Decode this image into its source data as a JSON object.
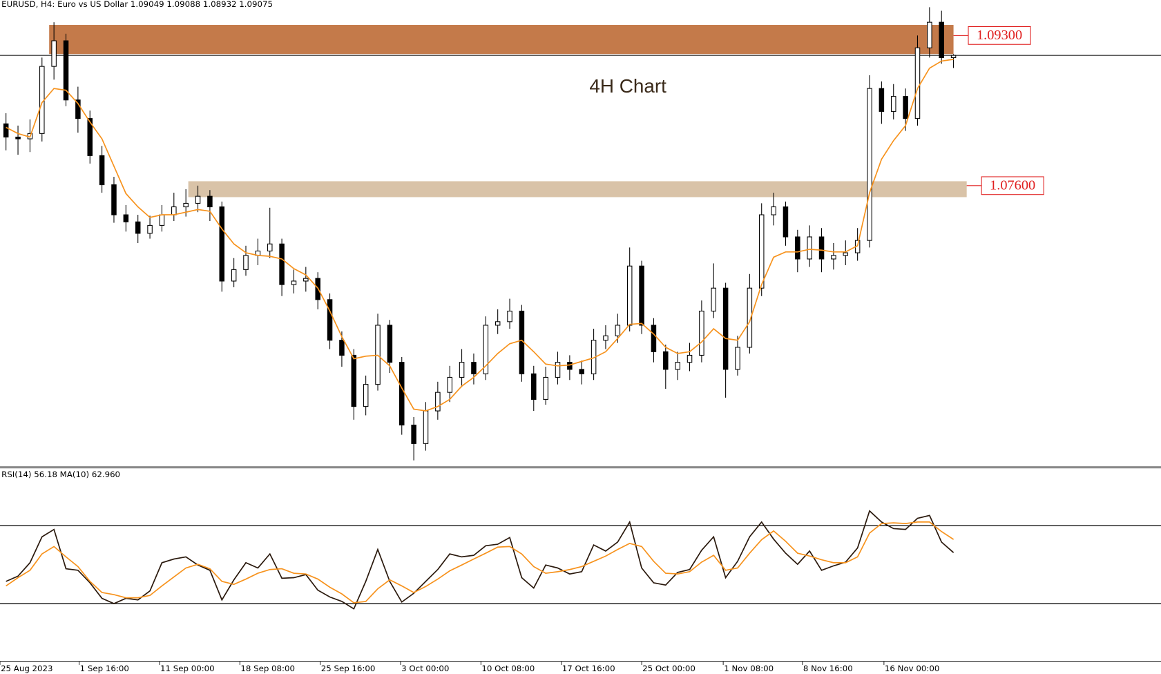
{
  "header": "EURUSD, H4:  Euro vs US Dollar  1.09049 1.09088 1.08932 1.09075",
  "chart_data": [
    {
      "type": "candlestick",
      "title": "4H Chart",
      "xlim": [
        -0.5,
        96.3
      ],
      "ylim": [
        1.0442,
        1.097
      ],
      "up_color": "#ffffff",
      "down_color": "#000000",
      "xticks": [
        {
          "value": -0.5,
          "label": "25 Aug 2023"
        },
        {
          "value": 6.1,
          "label": "1 Sep 16:00"
        },
        {
          "value": 12.8,
          "label": "11 Sep 00:00"
        },
        {
          "value": 19.5,
          "label": "18 Sep 08:00"
        },
        {
          "value": 26.2,
          "label": "25 Sep 16:00"
        },
        {
          "value": 32.9,
          "label": "3 Oct 00:00"
        },
        {
          "value": 39.6,
          "label": "10 Oct 08:00"
        },
        {
          "value": 46.3,
          "label": "17 Oct 16:00"
        },
        {
          "value": 53.0,
          "label": "25 Oct 00:00"
        },
        {
          "value": 59.8,
          "label": "1 Nov 08:00"
        },
        {
          "value": 66.4,
          "label": "8 Nov 16:00"
        },
        {
          "value": 73.2,
          "label": "16 Nov 00:00"
        }
      ],
      "open": [
        1.083,
        1.0815,
        1.0813,
        1.0819,
        1.0895,
        1.0924,
        1.0857,
        1.0836,
        1.0794,
        1.0761,
        1.0727,
        1.0719,
        1.0706,
        1.0715,
        1.0727,
        1.0736,
        1.074,
        1.0748,
        1.0736,
        1.0652,
        1.0665,
        1.0681,
        1.0686,
        1.0694,
        1.0648,
        1.0652,
        1.0655,
        1.0631,
        1.0585,
        1.0568,
        1.051,
        1.0535,
        1.0602,
        1.056,
        1.0489,
        1.0468,
        1.0505,
        1.0526,
        1.0543,
        1.056,
        1.0547,
        1.0602,
        1.0606,
        1.0618,
        1.0547,
        1.0518,
        1.0543,
        1.056,
        1.0552,
        1.0547,
        1.0585,
        1.059,
        1.0602,
        1.0669,
        1.0602,
        1.0572,
        1.0552,
        1.056,
        1.0568,
        1.0618,
        1.0644,
        1.0552,
        1.0577,
        1.0644,
        1.0727,
        1.0736,
        1.0702,
        1.0677,
        1.0702,
        1.0677,
        1.0681,
        1.0684,
        1.0698,
        1.087,
        1.0844,
        1.0861,
        1.0836,
        1.0916,
        1.0945,
        1.09049
      ],
      "high": [
        1.0842,
        1.0828,
        1.0835,
        1.0905,
        1.0945,
        1.0932,
        1.0872,
        1.0845,
        1.0805,
        1.077,
        1.0738,
        1.0727,
        1.0726,
        1.0738,
        1.0752,
        1.0756,
        1.076,
        1.0755,
        1.0742,
        1.0678,
        1.0692,
        1.07,
        1.0735,
        1.07,
        1.0665,
        1.0668,
        1.0662,
        1.0638,
        1.0595,
        1.0575,
        1.0545,
        1.0615,
        1.0608,
        1.0566,
        1.0498,
        1.0515,
        1.0538,
        1.0556,
        1.0575,
        1.057,
        1.0612,
        1.062,
        1.0632,
        1.0625,
        1.0556,
        1.0555,
        1.0572,
        1.0568,
        1.0562,
        1.0598,
        1.0602,
        1.0615,
        1.069,
        1.0675,
        1.061,
        1.058,
        1.0572,
        1.0582,
        1.063,
        1.0672,
        1.065,
        1.059,
        1.066,
        1.074,
        1.0752,
        1.0742,
        1.071,
        1.0715,
        1.0712,
        1.0695,
        1.0698,
        1.0712,
        1.0885,
        1.0878,
        1.0875,
        1.087,
        1.093,
        1.0962,
        1.0958,
        1.09088
      ],
      "low": [
        1.08,
        1.0795,
        1.0798,
        1.081,
        1.088,
        1.085,
        1.082,
        1.0785,
        1.0752,
        1.0718,
        1.0708,
        1.0695,
        1.07,
        1.0708,
        1.072,
        1.0725,
        1.073,
        1.072,
        1.064,
        1.0645,
        1.0658,
        1.067,
        1.0678,
        1.0635,
        1.0638,
        1.064,
        1.062,
        1.0575,
        1.0555,
        1.0495,
        1.05,
        1.0528,
        1.0548,
        1.0478,
        1.0449,
        1.046,
        1.0495,
        1.0515,
        1.0532,
        1.0535,
        1.054,
        1.0592,
        1.0598,
        1.0538,
        1.0505,
        1.0512,
        1.0535,
        1.054,
        1.0535,
        1.054,
        1.0575,
        1.0582,
        1.0595,
        1.0592,
        1.056,
        1.053,
        1.054,
        1.055,
        1.056,
        1.061,
        1.052,
        1.0545,
        1.057,
        1.0635,
        1.0715,
        1.0692,
        1.0662,
        1.0668,
        1.0662,
        1.0665,
        1.067,
        1.0675,
        1.069,
        1.083,
        1.0835,
        1.0822,
        1.0828,
        1.0905,
        1.0898,
        1.08932
      ],
      "close": [
        1.0815,
        1.0813,
        1.0819,
        1.0895,
        1.0924,
        1.0857,
        1.0836,
        1.0794,
        1.0761,
        1.0727,
        1.0719,
        1.0706,
        1.0715,
        1.0727,
        1.0736,
        1.074,
        1.0748,
        1.0736,
        1.0652,
        1.0665,
        1.0681,
        1.0686,
        1.0694,
        1.0648,
        1.0652,
        1.0655,
        1.0631,
        1.0585,
        1.0568,
        1.051,
        1.0535,
        1.0602,
        1.056,
        1.0489,
        1.0468,
        1.0505,
        1.0526,
        1.0543,
        1.056,
        1.0547,
        1.0602,
        1.0606,
        1.0618,
        1.0547,
        1.0518,
        1.0543,
        1.056,
        1.0552,
        1.0547,
        1.0585,
        1.059,
        1.0602,
        1.0669,
        1.0602,
        1.0572,
        1.0552,
        1.056,
        1.0568,
        1.0618,
        1.0644,
        1.0552,
        1.0577,
        1.0644,
        1.0727,
        1.0736,
        1.0702,
        1.0677,
        1.0702,
        1.0677,
        1.0681,
        1.0684,
        1.0698,
        1.087,
        1.0844,
        1.0861,
        1.0836,
        1.0916,
        1.0945,
        1.09049,
        1.09075
      ],
      "ma": {
        "color": "#f7931e",
        "values": [
          1.0826,
          1.0819,
          1.0815,
          1.0854,
          1.087,
          1.0868,
          1.0853,
          1.0832,
          1.0813,
          1.0782,
          1.0751,
          1.0736,
          1.0724,
          1.0727,
          1.0727,
          1.073,
          1.0733,
          1.0731,
          1.0711,
          1.0694,
          1.0684,
          1.0681,
          1.068,
          1.0677,
          1.0666,
          1.0659,
          1.0644,
          1.0618,
          1.0589,
          1.0564,
          1.0567,
          1.0568,
          1.0556,
          1.0531,
          1.0507,
          1.0505,
          1.051,
          1.0518,
          1.0533,
          1.0543,
          1.0556,
          1.057,
          1.0581,
          1.0585,
          1.0572,
          1.0558,
          1.0556,
          1.0557,
          1.0561,
          1.0565,
          1.0572,
          1.0587,
          1.0603,
          1.0604,
          1.0592,
          1.0577,
          1.057,
          1.0572,
          1.0583,
          1.0598,
          1.0587,
          1.0585,
          1.0606,
          1.0648,
          1.0679,
          1.0685,
          1.0685,
          1.0688,
          1.0687,
          1.0685,
          1.0685,
          1.0692,
          1.0752,
          1.079,
          1.0811,
          1.0828,
          1.087,
          1.0893,
          1.0901,
          1.0903
        ]
      },
      "zones": [
        {
          "color": "#c47a4a",
          "start": 3.6,
          "end": 79.0,
          "top": 1.0942,
          "bottom": 1.0909,
          "label": {
            "value": 1.093,
            "label": "1.09300"
          }
        },
        {
          "color": "#d9c3a8",
          "start": 15.2,
          "end": 80.1,
          "top": 1.0765,
          "bottom": 1.0747,
          "label": {
            "value": 1.076,
            "label": "1.07600"
          }
        }
      ]
    },
    {
      "type": "line",
      "label": "RSI(14) 56.18 MA(10) 62.960",
      "xlim": [
        -0.5,
        96.3
      ],
      "ylim": [
        0,
        100
      ],
      "levels": [
        30,
        70
      ],
      "series": [
        {
          "color": "#2b1a0e",
          "values": [
            41.4,
            44.1,
            51.0,
            64.3,
            68.1,
            47.9,
            47.1,
            40.7,
            32.7,
            30.0,
            32.7,
            31.9,
            36.5,
            51.0,
            52.9,
            54.0,
            49.8,
            47.1,
            31.9,
            42.2,
            51.0,
            48.3,
            55.5,
            43.0,
            43.3,
            44.9,
            36.9,
            33.4,
            31.1,
            27.3,
            41.4,
            57.8,
            41.4,
            30.8,
            35.3,
            41.4,
            47.5,
            55.5,
            54.0,
            54.8,
            59.7,
            60.5,
            63.9,
            43.3,
            38.0,
            49.8,
            48.3,
            45.2,
            46.4,
            60.1,
            57.0,
            61.6,
            71.9,
            48.3,
            40.7,
            39.5,
            46.0,
            47.5,
            57.4,
            64.3,
            43.3,
            51.7,
            64.3,
            71.9,
            63.1,
            55.9,
            50.2,
            57.0,
            47.1,
            49.4,
            51.3,
            58.6,
            77.6,
            71.9,
            68.5,
            68.1,
            73.8,
            75.3,
            61.6,
            56.18
          ]
        },
        {
          "color": "#f7931e",
          "values": [
            39.1,
            43.3,
            47.1,
            55.5,
            59.3,
            54.0,
            49.0,
            41.4,
            35.7,
            34.6,
            33.0,
            33.0,
            34.2,
            39.1,
            43.7,
            48.3,
            50.2,
            47.9,
            41.4,
            39.9,
            42.6,
            45.6,
            47.5,
            47.9,
            45.6,
            45.2,
            42.6,
            38.4,
            35.0,
            30.4,
            31.1,
            37.6,
            42.2,
            39.1,
            35.7,
            38.8,
            42.6,
            46.8,
            49.8,
            52.9,
            55.9,
            59.0,
            59.3,
            55.5,
            49.0,
            45.6,
            46.4,
            47.5,
            49.0,
            51.7,
            54.4,
            57.8,
            60.9,
            59.3,
            51.7,
            45.6,
            45.2,
            46.4,
            51.3,
            54.8,
            47.1,
            48.3,
            55.9,
            62.8,
            67.3,
            62.0,
            55.9,
            54.4,
            52.5,
            51.0,
            51.0,
            54.0,
            66.2,
            71.1,
            71.5,
            71.1,
            71.9,
            71.9,
            67.0,
            62.96
          ]
        }
      ]
    }
  ]
}
